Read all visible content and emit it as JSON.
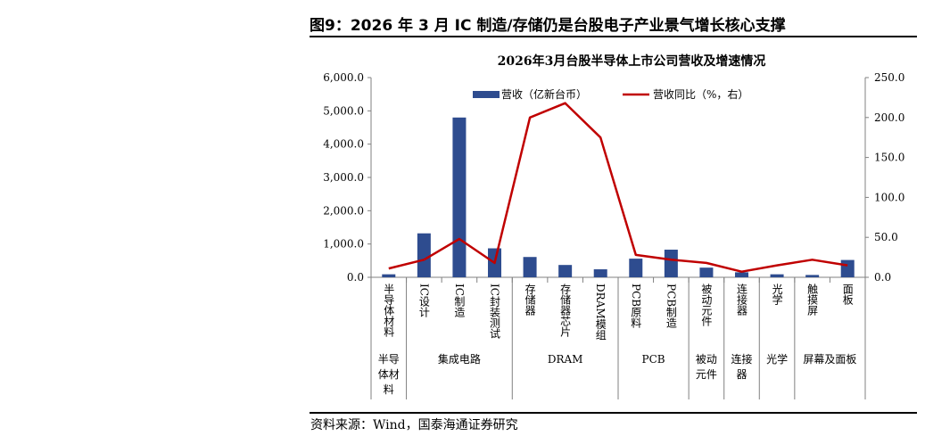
{
  "figure_title": "图9：2026 年 3 月 IC 制造/存储仍是台股电子产业景气增长核心支撑",
  "source_note": "资料来源：Wind，国泰海通证券研究",
  "colors": {
    "bar": "#2E4C8F",
    "line": "#C00000",
    "axis": "#808080"
  },
  "chart_data": {
    "type": "bar+line",
    "title": "2026年3月台股半导体上市公司营收及增速情况",
    "legend_position": "top",
    "grid": false,
    "categories": [
      "半导体材料",
      "IC设计",
      "IC制造",
      "IC封装测试",
      "存储器",
      "存储器芯片",
      "DRAM模组",
      "PCB原料",
      "PCB制造",
      "被动元件",
      "连接器",
      "光学",
      "触摸屏",
      "面板"
    ],
    "groups": [
      {
        "label": "半导体材料",
        "span": 1,
        "lines": [
          "半导",
          "体材",
          "料"
        ]
      },
      {
        "label": "集成电路",
        "span": 3,
        "lines": [
          "集成电路"
        ]
      },
      {
        "label": "DRAM",
        "span": 3,
        "lines": [
          "DRAM"
        ]
      },
      {
        "label": "PCB",
        "span": 2,
        "lines": [
          "PCB"
        ]
      },
      {
        "label": "被动元件",
        "span": 1,
        "lines": [
          "被动",
          "元件"
        ]
      },
      {
        "label": "连接器",
        "span": 1,
        "lines": [
          "连接",
          "器"
        ]
      },
      {
        "label": "光学",
        "span": 1,
        "lines": [
          "光学"
        ]
      },
      {
        "label": "屏幕及面板",
        "span": 2,
        "lines": [
          "屏幕及面板"
        ]
      }
    ],
    "series": [
      {
        "name": "营收（亿新台币）",
        "type": "bar",
        "axis": "left",
        "values": [
          90,
          1320,
          4800,
          870,
          610,
          370,
          240,
          560,
          830,
          290,
          150,
          90,
          70,
          520
        ]
      },
      {
        "name": "营收同比（%，右）",
        "type": "line",
        "axis": "right",
        "values": [
          11,
          22,
          48,
          18,
          200,
          218,
          175,
          28,
          22,
          18,
          7,
          15,
          22,
          15
        ]
      }
    ],
    "y_left": {
      "min": 0,
      "max": 6000,
      "ticks": [
        "0.0",
        "1,000.0",
        "2,000.0",
        "3,000.0",
        "4,000.0",
        "5,000.0",
        "6,000.0"
      ]
    },
    "y_right": {
      "min": 0,
      "max": 250,
      "ticks": [
        "0.0",
        "50.0",
        "100.0",
        "150.0",
        "200.0",
        "250.0"
      ]
    }
  }
}
